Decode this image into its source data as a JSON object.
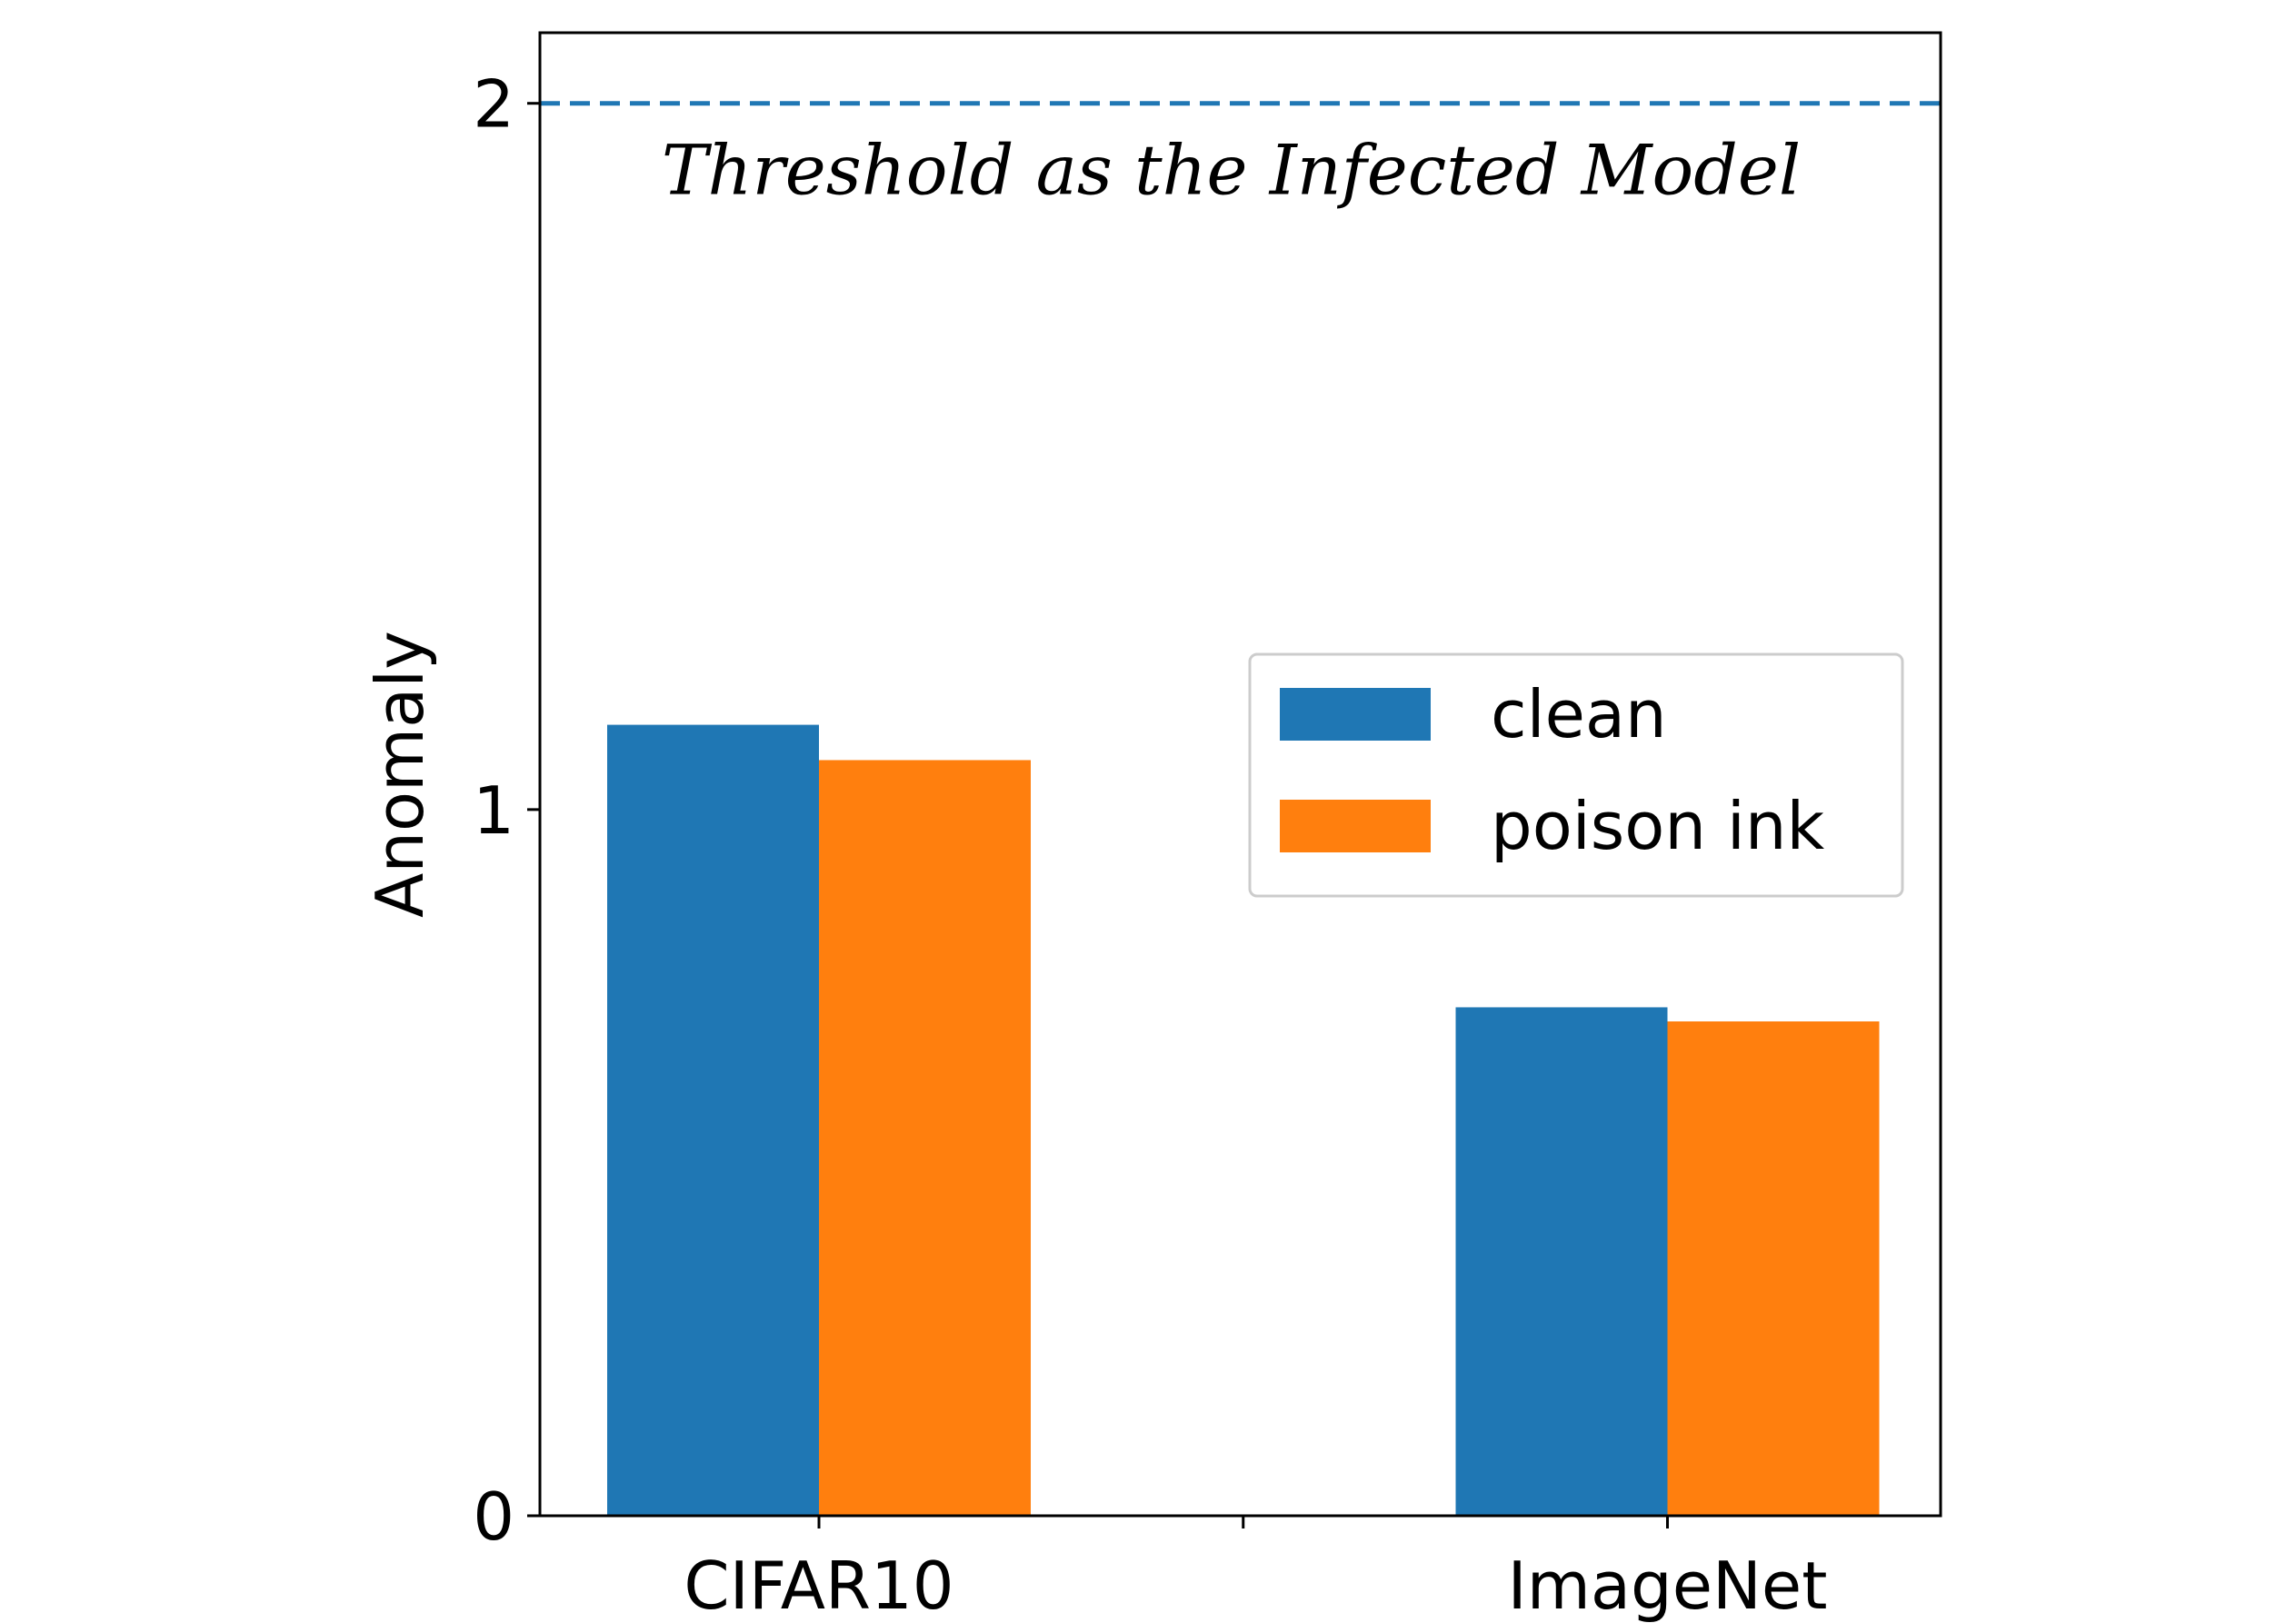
{
  "chart_data": {
    "type": "bar",
    "title": "",
    "xlabel": "",
    "ylabel": "Anomaly",
    "categories": [
      "CIFAR10",
      "ImageNet"
    ],
    "series": [
      {
        "name": "clean",
        "values": [
          1.12,
          0.72
        ],
        "color": "#1f77b4"
      },
      {
        "name": "poison ink",
        "values": [
          1.07,
          0.7
        ],
        "color": "#ff7f0e"
      }
    ],
    "ylim": [
      0,
      2.1
    ],
    "yticks": [
      0,
      1,
      2
    ],
    "threshold": {
      "value": 2,
      "label": "Threshold as the Infected Model",
      "color": "#1f77b4",
      "style": "dashed"
    },
    "legend": {
      "position": "center-right"
    },
    "grid": false
  }
}
